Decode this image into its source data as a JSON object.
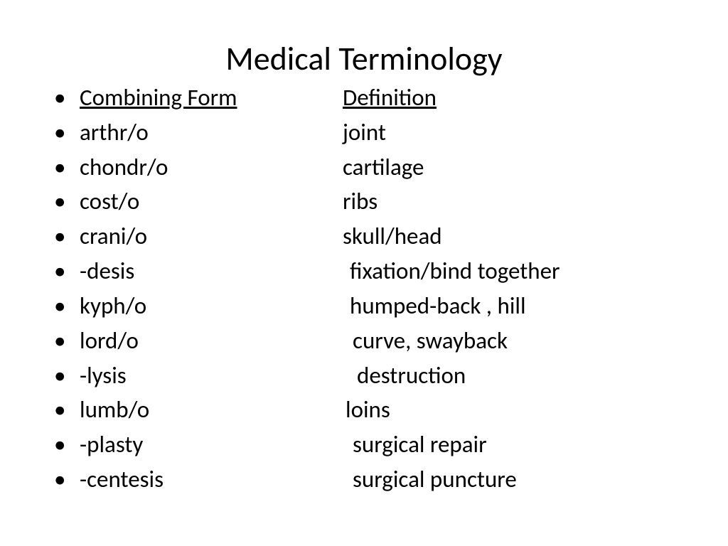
{
  "title": "Medical Terminology",
  "header": {
    "term_label": "Combining Form",
    "def_label": "Definition"
  },
  "rows": [
    {
      "term": "arthr/o",
      "def": "joint",
      "def_indent": 0
    },
    {
      "term": "chondr/o",
      "def": "cartilage",
      "def_indent": 0
    },
    {
      "term": "cost/o",
      "def": "ribs",
      "def_indent": -8
    },
    {
      "term": "crani/o",
      "def": "skull/head",
      "def_indent": 0
    },
    {
      "term": "-desis",
      "def": "fixation/bind together",
      "def_indent": 10
    },
    {
      "term": "kyph/o",
      "def": "humped-back , hill",
      "def_indent": 10
    },
    {
      "term": "lord/o",
      "def": "curve, swayback",
      "def_indent": 14
    },
    {
      "term": "-lysis",
      "def": "destruction",
      "def_indent": 20
    },
    {
      "term": "lumb/o",
      "def": "loins",
      "def_indent": 4
    },
    {
      "term": "-plasty",
      "def": "surgical repair",
      "def_indent": 14
    },
    {
      "term": "-centesis",
      "def": "surgical puncture",
      "def_indent": 14
    }
  ],
  "colors": {
    "background": "#ffffff",
    "text": "#000000"
  },
  "fonts": {
    "title_size": 46,
    "body_size": 33
  }
}
